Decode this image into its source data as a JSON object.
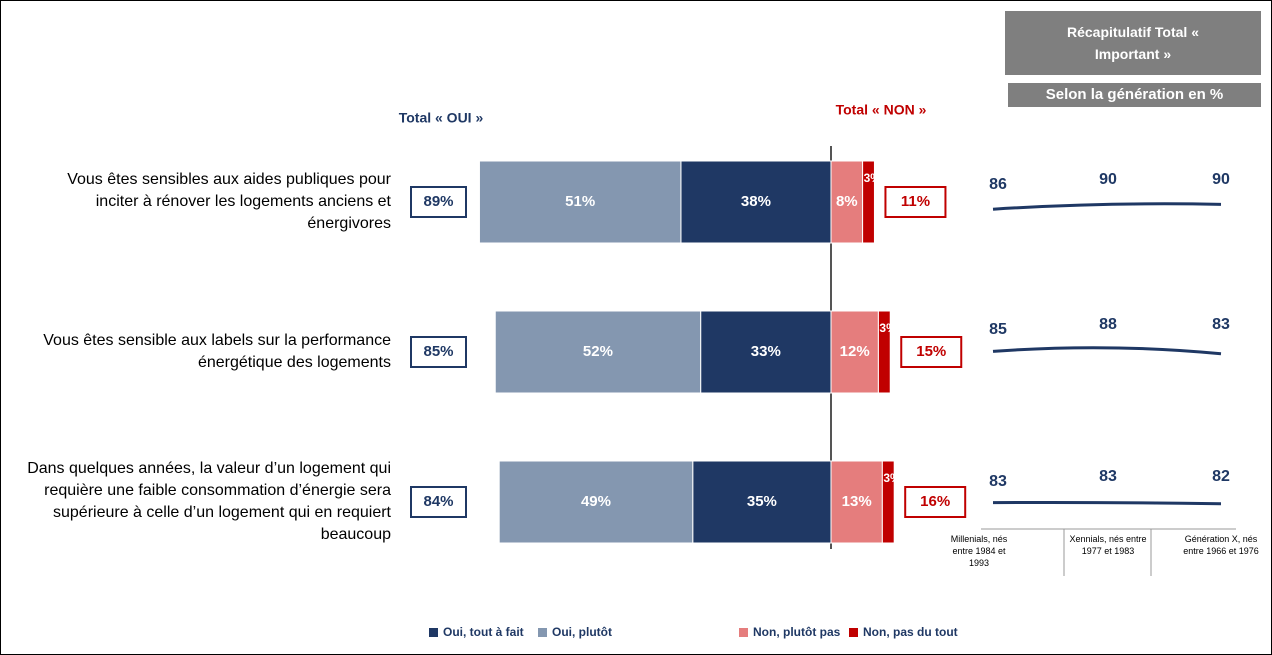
{
  "chart_data": [
    {
      "type": "diverging_bar",
      "categories": [
        "Vous êtes sensibles aux aides publiques pour inciter à rénover les logements anciens et énergivores",
        "Vous êtes sensible aux labels sur la performance énergétique des logements",
        "Dans quelques années, la valeur d’un logement qui requière une faible consommation d’énergie sera supérieure à celle d’un logement qui en requiert beaucoup"
      ],
      "series": [
        {
          "name": "Oui, tout à fait",
          "color": "#1f3864",
          "side": "left",
          "values": [
            38,
            33,
            35
          ],
          "value_labels": [
            "38%",
            "33%",
            "35%"
          ]
        },
        {
          "name": "Oui, plutôt",
          "color": "#8497b0",
          "side": "left",
          "values": [
            51,
            52,
            49
          ],
          "value_labels": [
            "51%",
            "52%",
            "49%"
          ]
        },
        {
          "name": "Non, plutôt pas",
          "color": "#e57d7d",
          "side": "right",
          "values": [
            8,
            12,
            13
          ],
          "value_labels": [
            "8%",
            "12%",
            "13%"
          ]
        },
        {
          "name": "Non, pas du tout",
          "color": "#c00000",
          "side": "right",
          "values": [
            3,
            3,
            3
          ],
          "value_labels": [
            "3%",
            "3%",
            "3%"
          ]
        }
      ],
      "total_oui": {
        "label": "Total « OUI »",
        "color": "#1f3864",
        "values": [
          89,
          85,
          84
        ],
        "value_labels": [
          "89%",
          "85%",
          "84%"
        ]
      },
      "total_non": {
        "label": "Total «  NON »",
        "color": "#c00000",
        "values": [
          11,
          15,
          16
        ],
        "value_labels": [
          "11%",
          "15%",
          "16%"
        ]
      }
    },
    {
      "type": "line",
      "title": "Récapitulatif Total « Important »",
      "subtitle": "Selon la génération en %",
      "categories": [
        "Millenials, nés entre 1984 et 1993",
        "Xennials, nés entre 1977 et 1983",
        "Génération X, nés entre 1966 et 1976"
      ],
      "series": [
        {
          "color": "#1f3864",
          "values": [
            86,
            90,
            90
          ]
        },
        {
          "color": "#1f3864",
          "values": [
            85,
            88,
            83
          ]
        },
        {
          "color": "#1f3864",
          "values": [
            83,
            83,
            82
          ]
        }
      ]
    }
  ]
}
